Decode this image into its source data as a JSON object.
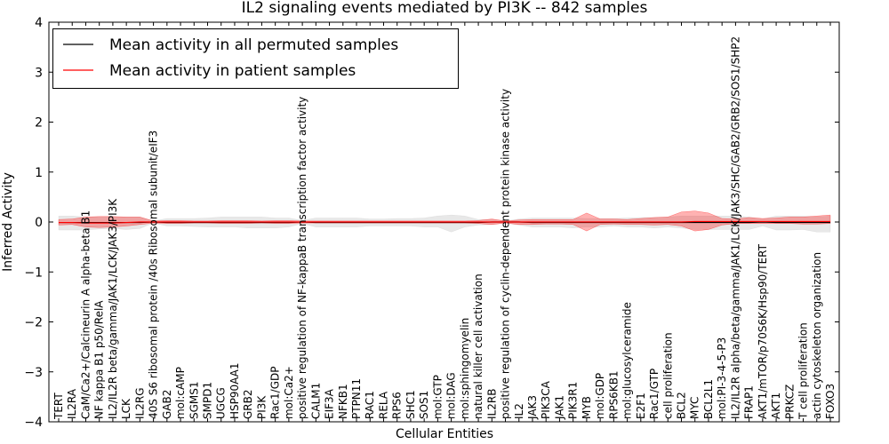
{
  "chart_data": {
    "type": "line",
    "title": "IL2 signaling events mediated by PI3K -- 842 samples",
    "xlabel": "Cellular Entities",
    "ylabel": "Inferred Activity",
    "ylim": [
      -4,
      4
    ],
    "yticks": [
      -4,
      -3,
      -2,
      -1,
      0,
      1,
      2,
      3,
      4
    ],
    "ytick_labels": [
      "−4",
      "−3",
      "−2",
      "−1",
      "0",
      "1",
      "2",
      "3",
      "4"
    ],
    "legend_position": "top-left",
    "categories": [
      "TERT",
      "IL2RA",
      "CaM/Ca2+/Calcineurin A alpha-beta B1",
      "NF kappa B1 p50/RelA",
      "IL2/IL2R beta/gamma/JAK1/LCK/JAK3/PI3K",
      "LCK",
      "IL2RG",
      "40S S6 ribosomal protein /40s Ribosomal subunit/eIF3",
      "GAB2",
      "mol:cAMP",
      "SGMS1",
      "SMPD1",
      "UGCG",
      "HSP90AA1",
      "GRB2",
      "PI3K",
      "Rac1/GDP",
      "mol:Ca2+",
      "positive regulation of NF-kappaB transcription factor activity",
      "CALM1",
      "EIF3A",
      "NFKB1",
      "PTPN11",
      "RAC1",
      "RELA",
      "RPS6",
      "SHC1",
      "SOS1",
      "mol:GTP",
      "mol:DAG",
      "mol:sphingomyelin",
      "natural killer cell activation",
      "IL2RB",
      "positive regulation of cyclin-dependent protein kinase activity",
      "IL2",
      "JAK3",
      "PIK3CA",
      "JAK1",
      "PIK3R1",
      "MYB",
      "mol:GDP",
      "RPS6KB1",
      "mol:glucosylceramide",
      "E2F1",
      "Rac1/GTP",
      "cell proliferation",
      "BCL2",
      "MYC",
      "BCL2L1",
      "mol:PI-3-4-5-P3",
      "IL2/IL2R alpha/beta/gamma/JAK1/LCK/JAK3/SHC/GAB2/GRB2/SOS1/SHP2",
      "FRAP1",
      "AKT1/mTOR/p70S6K/Hsp90/TERT",
      "AKT1",
      "PRKCZ",
      "T cell proliferation",
      "actin cytoskeleton organization",
      "FOXO3"
    ],
    "series": [
      {
        "name": "Mean activity in all permuted samples",
        "color": "#000000",
        "values": [
          -0.01,
          -0.01,
          -0.01,
          -0.01,
          -0.01,
          -0.01,
          -0.01,
          0.0,
          -0.01,
          -0.01,
          -0.01,
          -0.01,
          -0.01,
          -0.01,
          -0.01,
          -0.01,
          -0.01,
          -0.01,
          0.0,
          -0.01,
          -0.01,
          -0.01,
          -0.01,
          -0.01,
          -0.01,
          -0.01,
          -0.01,
          -0.01,
          -0.01,
          -0.01,
          -0.01,
          -0.01,
          0.0,
          0.0,
          0.0,
          -0.01,
          -0.01,
          -0.01,
          -0.01,
          -0.01,
          -0.01,
          -0.01,
          -0.01,
          -0.01,
          -0.01,
          -0.01,
          -0.01,
          -0.01,
          -0.01,
          -0.01,
          -0.01,
          -0.01,
          0.0,
          -0.01,
          -0.01,
          -0.01,
          -0.01,
          -0.01
        ]
      },
      {
        "name": "Mean activity in patient samples",
        "color": "#ff0000",
        "values": [
          -0.01,
          -0.01,
          -0.02,
          -0.02,
          -0.02,
          -0.01,
          0.0,
          0.0,
          0.0,
          0.0,
          0.0,
          0.0,
          0.0,
          0.0,
          0.0,
          0.0,
          0.0,
          0.0,
          0.0,
          0.0,
          0.0,
          0.0,
          0.0,
          0.0,
          0.0,
          0.0,
          0.0,
          0.0,
          0.0,
          0.0,
          0.0,
          0.0,
          0.0,
          0.0,
          0.0,
          0.0,
          0.0,
          0.0,
          0.0,
          0.0,
          0.0,
          0.0,
          0.0,
          0.0,
          0.0,
          0.0,
          0.0,
          0.01,
          0.01,
          0.01,
          0.01,
          0.01,
          0.01,
          0.01,
          0.01,
          0.01,
          0.01,
          0.01
        ]
      }
    ],
    "bands": [
      {
        "name": "permuted range",
        "color": "#cccccc",
        "lower": [
          -0.16,
          -0.16,
          -0.16,
          -0.14,
          -0.13,
          -0.15,
          -0.13,
          -0.02,
          -0.08,
          -0.08,
          -0.09,
          -0.1,
          -0.1,
          -0.1,
          -0.12,
          -0.12,
          -0.12,
          -0.1,
          -0.03,
          -0.1,
          -0.1,
          -0.1,
          -0.1,
          -0.08,
          -0.08,
          -0.08,
          -0.08,
          -0.1,
          -0.1,
          -0.2,
          -0.1,
          -0.06,
          -0.05,
          -0.02,
          -0.06,
          -0.1,
          -0.1,
          -0.1,
          -0.12,
          -0.1,
          -0.1,
          -0.08,
          -0.1,
          -0.1,
          -0.12,
          -0.1,
          -0.12,
          -0.15,
          -0.15,
          -0.15,
          -0.15,
          -0.15,
          -0.08,
          -0.16,
          -0.16,
          -0.15,
          -0.2,
          -0.2
        ],
        "upper": [
          0.12,
          0.12,
          0.1,
          0.1,
          0.1,
          0.1,
          0.1,
          0.02,
          0.07,
          0.07,
          0.07,
          0.08,
          0.1,
          0.1,
          0.1,
          0.1,
          0.08,
          0.08,
          0.03,
          0.08,
          0.08,
          0.08,
          0.08,
          0.06,
          0.06,
          0.07,
          0.07,
          0.08,
          0.12,
          0.14,
          0.12,
          0.05,
          0.05,
          0.02,
          0.06,
          0.08,
          0.08,
          0.08,
          0.08,
          0.07,
          0.07,
          0.07,
          0.08,
          0.09,
          0.09,
          0.1,
          0.12,
          0.12,
          0.12,
          0.12,
          0.12,
          0.1,
          0.06,
          0.12,
          0.12,
          0.12,
          0.1,
          0.12
        ]
      },
      {
        "name": "patient range",
        "color": "#ff0000",
        "lower": [
          -0.06,
          -0.05,
          -0.1,
          -0.11,
          -0.1,
          -0.08,
          -0.05,
          -0.02,
          -0.03,
          -0.03,
          -0.02,
          -0.02,
          -0.03,
          -0.03,
          -0.03,
          -0.02,
          -0.03,
          -0.03,
          -0.02,
          -0.02,
          -0.02,
          -0.02,
          -0.02,
          -0.02,
          -0.02,
          -0.02,
          -0.02,
          -0.02,
          -0.02,
          -0.02,
          -0.02,
          -0.03,
          -0.05,
          -0.02,
          -0.05,
          -0.05,
          -0.04,
          -0.04,
          -0.05,
          -0.18,
          -0.05,
          -0.04,
          -0.05,
          -0.05,
          -0.06,
          -0.05,
          -0.08,
          -0.18,
          -0.15,
          -0.06,
          -0.03,
          -0.03,
          -0.03,
          -0.03,
          -0.03,
          -0.04,
          -0.04,
          -0.03
        ],
        "upper": [
          0.05,
          0.06,
          0.1,
          0.11,
          0.11,
          0.1,
          0.1,
          0.02,
          0.03,
          0.03,
          0.02,
          0.02,
          0.03,
          0.03,
          0.03,
          0.02,
          0.03,
          0.03,
          0.02,
          0.02,
          0.02,
          0.02,
          0.02,
          0.02,
          0.02,
          0.02,
          0.02,
          0.02,
          0.02,
          0.02,
          0.02,
          0.03,
          0.06,
          0.02,
          0.04,
          0.05,
          0.05,
          0.05,
          0.05,
          0.18,
          0.06,
          0.06,
          0.05,
          0.07,
          0.09,
          0.1,
          0.2,
          0.22,
          0.18,
          0.07,
          0.06,
          0.09,
          0.07,
          0.08,
          0.1,
          0.1,
          0.12,
          0.14
        ]
      }
    ]
  }
}
